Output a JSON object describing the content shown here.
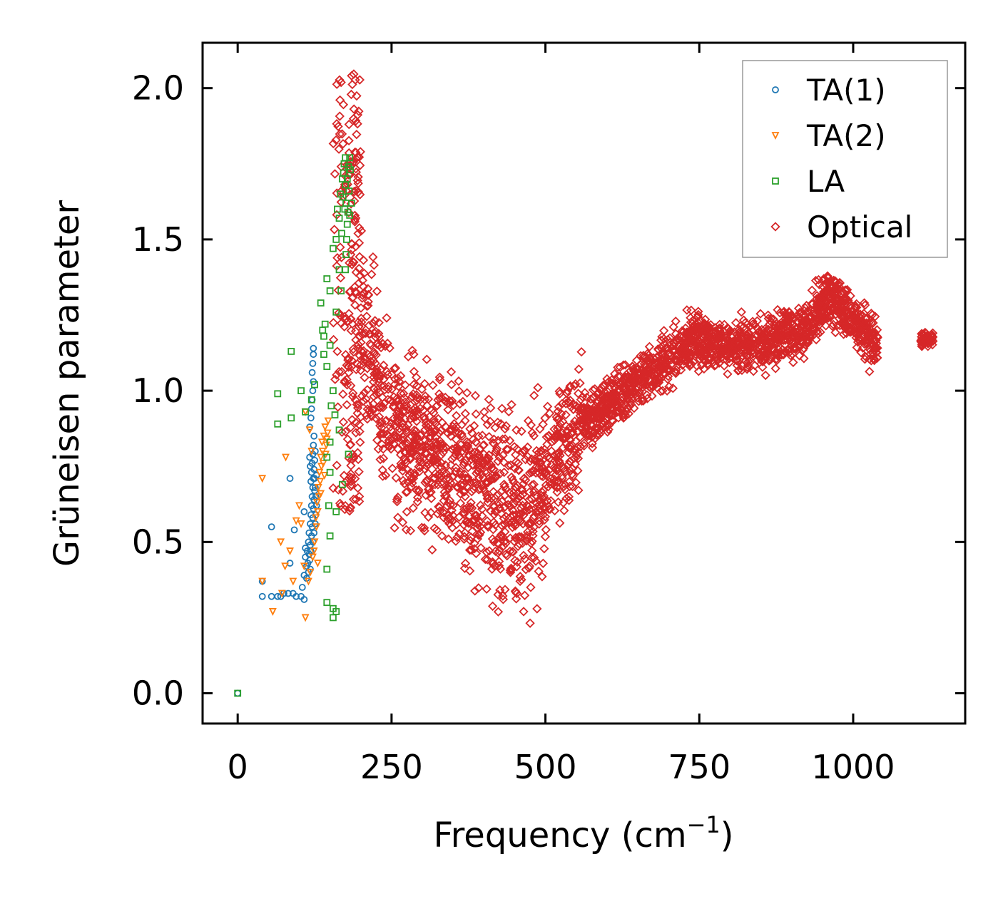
{
  "chart_data": {
    "type": "scatter",
    "title": "",
    "xlabel": "Frequency (cm",
    "xlabel_sup": "−1",
    "xlabel_close": ")",
    "ylabel": "Grüneisen parameter",
    "xlim": [
      -57,
      1182
    ],
    "ylim": [
      -0.1,
      2.15
    ],
    "xticks": [
      0,
      250,
      500,
      750,
      1000
    ],
    "xtick_labels": [
      "0",
      "250",
      "500",
      "750",
      "1000"
    ],
    "yticks": [
      0.0,
      0.5,
      1.0,
      1.5,
      2.0
    ],
    "ytick_labels": [
      "0.0",
      "0.5",
      "1.0",
      "1.5",
      "2.0"
    ],
    "grid": false,
    "legend_position": "top-right",
    "series": [
      {
        "name": "TA(1)",
        "marker": "circle",
        "color": "#1f77b4",
        "points": [
          [
            0,
            0
          ],
          [
            40,
            0.37
          ],
          [
            40,
            0.32
          ],
          [
            55,
            0.32
          ],
          [
            65,
            0.32
          ],
          [
            70,
            0.32
          ],
          [
            75,
            0.33
          ],
          [
            82,
            0.33
          ],
          [
            90,
            0.33
          ],
          [
            95,
            0.32
          ],
          [
            103,
            0.32
          ],
          [
            108,
            0.31
          ],
          [
            55,
            0.55
          ],
          [
            85,
            0.43
          ],
          [
            92,
            0.54
          ],
          [
            85,
            0.71
          ],
          [
            105,
            0.35
          ],
          [
            108,
            0.39
          ],
          [
            112,
            0.38
          ],
          [
            115,
            0.4
          ],
          [
            118,
            0.41
          ],
          [
            108,
            0.6
          ],
          [
            110,
            0.45
          ],
          [
            113,
            0.47
          ],
          [
            115,
            0.5
          ],
          [
            116,
            0.53
          ],
          [
            118,
            0.56
          ],
          [
            119,
            0.59
          ],
          [
            120,
            0.62
          ],
          [
            121,
            0.65
          ],
          [
            122,
            0.68
          ],
          [
            123,
            0.71
          ],
          [
            124,
            0.74
          ],
          [
            125,
            0.77
          ],
          [
            126,
            0.8
          ],
          [
            116,
            0.46
          ],
          [
            118,
            0.49
          ],
          [
            120,
            0.52
          ],
          [
            121,
            0.55
          ],
          [
            122,
            0.58
          ],
          [
            123,
            0.61
          ],
          [
            124,
            0.64
          ],
          [
            125,
            0.67
          ],
          [
            119,
            0.7
          ],
          [
            120,
            0.73
          ],
          [
            121,
            0.76
          ],
          [
            122,
            0.79
          ],
          [
            123,
            0.82
          ],
          [
            124,
            0.85
          ],
          [
            117,
            0.88
          ],
          [
            119,
            0.91
          ],
          [
            120,
            0.94
          ],
          [
            121,
            0.97
          ],
          [
            122,
            1.0
          ],
          [
            123,
            1.03
          ],
          [
            121,
            1.06
          ],
          [
            122,
            1.09
          ],
          [
            123,
            1.12
          ],
          [
            123,
            1.14
          ],
          [
            114,
            0.43
          ],
          [
            117,
            0.44
          ],
          [
            119,
            0.47
          ],
          [
            122,
            0.5
          ],
          [
            124,
            0.53
          ],
          [
            126,
            0.56
          ],
          [
            127,
            0.59
          ],
          [
            128,
            0.62
          ],
          [
            127,
            0.65
          ],
          [
            126,
            0.68
          ],
          [
            125,
            0.71
          ],
          [
            118,
            0.75
          ],
          [
            117,
            0.78
          ],
          [
            112,
            0.42
          ],
          [
            110,
            0.48
          ],
          [
            128,
            0.72
          ]
        ]
      },
      {
        "name": "TA(2)",
        "marker": "triangle-down",
        "color": "#ff7f0e",
        "points": [
          [
            40,
            0.71
          ],
          [
            40,
            0.37
          ],
          [
            57,
            0.27
          ],
          [
            72,
            0.33
          ],
          [
            70,
            0.5
          ],
          [
            77,
            0.42
          ],
          [
            85,
            0.47
          ],
          [
            90,
            0.37
          ],
          [
            95,
            0.57
          ],
          [
            100,
            0.62
          ],
          [
            103,
            0.56
          ],
          [
            108,
            0.42
          ],
          [
            110,
            0.25
          ],
          [
            110,
            0.93
          ],
          [
            115,
            0.37
          ],
          [
            118,
            0.4
          ],
          [
            122,
            0.45
          ],
          [
            125,
            0.5
          ],
          [
            128,
            0.55
          ],
          [
            130,
            0.6
          ],
          [
            132,
            0.65
          ],
          [
            134,
            0.7
          ],
          [
            136,
            0.75
          ],
          [
            138,
            0.8
          ],
          [
            140,
            0.85
          ],
          [
            142,
            0.88
          ],
          [
            127,
            0.58
          ],
          [
            129,
            0.63
          ],
          [
            131,
            0.68
          ],
          [
            133,
            0.73
          ],
          [
            135,
            0.78
          ],
          [
            137,
            0.83
          ],
          [
            139,
            0.76
          ],
          [
            141,
            0.72
          ],
          [
            143,
            0.79
          ],
          [
            144,
            0.82
          ],
          [
            145,
            0.84
          ],
          [
            146,
            0.86
          ],
          [
            147,
            0.9
          ],
          [
            117,
            0.87
          ],
          [
            120,
            0.8
          ],
          [
            78,
            0.78
          ],
          [
            130,
            0.43
          ],
          [
            135,
            0.66
          ],
          [
            124,
            0.47
          ]
        ]
      },
      {
        "name": "LA",
        "marker": "square",
        "color": "#2ca02c",
        "points": [
          [
            0,
            0
          ],
          [
            65,
            0.89
          ],
          [
            65,
            0.99
          ],
          [
            87,
            0.91
          ],
          [
            87,
            1.13
          ],
          [
            103,
            1.0
          ],
          [
            110,
            0.93
          ],
          [
            120,
            0.97
          ],
          [
            125,
            1.02
          ],
          [
            135,
            1.29
          ],
          [
            140,
            1.18
          ],
          [
            142,
            1.22
          ],
          [
            145,
            1.37
          ],
          [
            150,
            1.33
          ],
          [
            155,
            1.47
          ],
          [
            160,
            1.5
          ],
          [
            162,
            1.6
          ],
          [
            165,
            1.57
          ],
          [
            167,
            1.65
          ],
          [
            170,
            1.7
          ],
          [
            172,
            1.72
          ],
          [
            173,
            1.75
          ],
          [
            175,
            1.68
          ],
          [
            176,
            1.62
          ],
          [
            178,
            1.55
          ],
          [
            180,
            1.74
          ],
          [
            182,
            1.58
          ],
          [
            177,
            1.5
          ],
          [
            174,
            1.6
          ],
          [
            171,
            1.64
          ],
          [
            169,
            1.52
          ],
          [
            178,
            1.7
          ],
          [
            181,
            1.66
          ],
          [
            183,
            1.73
          ],
          [
            179,
            1.59
          ],
          [
            176,
            1.45
          ],
          [
            168,
            1.33
          ],
          [
            165,
            1.4
          ],
          [
            160,
            1.26
          ],
          [
            150,
            1.15
          ],
          [
            145,
            1.08
          ],
          [
            140,
            1.12
          ],
          [
            138,
            1.2
          ],
          [
            152,
            0.95
          ],
          [
            155,
            1.0
          ],
          [
            150,
            0.83
          ],
          [
            145,
            0.78
          ],
          [
            150,
            0.73
          ],
          [
            148,
            0.62
          ],
          [
            150,
            0.52
          ],
          [
            145,
            0.41
          ],
          [
            145,
            0.3
          ],
          [
            155,
            0.28
          ],
          [
            155,
            0.25
          ],
          [
            160,
            0.27
          ],
          [
            170,
            0.69
          ],
          [
            180,
            0.79
          ],
          [
            165,
            0.87
          ],
          [
            158,
            0.92
          ],
          [
            160,
            0.6
          ],
          [
            175,
            1.4
          ],
          [
            185,
            1.62
          ],
          [
            175,
            1.77
          ],
          [
            182,
            1.77
          ]
        ]
      },
      {
        "name": "Optical",
        "marker": "diamond",
        "color": "#d62728",
        "points": [],
        "cloud_ridge": [
          [
            155,
            0.72
          ],
          [
            162,
            1.6
          ],
          [
            170,
            2.0
          ],
          [
            180,
            1.85
          ],
          [
            190,
            1.45
          ],
          [
            200,
            1.2
          ],
          [
            230,
            1.0
          ],
          [
            270,
            0.85
          ],
          [
            330,
            0.78
          ],
          [
            380,
            0.68
          ],
          [
            420,
            0.62
          ],
          [
            470,
            0.6
          ],
          [
            510,
            0.75
          ],
          [
            560,
            0.9
          ],
          [
            620,
            0.98
          ],
          [
            680,
            1.07
          ],
          [
            740,
            1.18
          ],
          [
            800,
            1.14
          ],
          [
            860,
            1.16
          ],
          [
            920,
            1.2
          ],
          [
            960,
            1.32
          ],
          [
            990,
            1.27
          ],
          [
            1030,
            1.15
          ],
          [
            1120,
            1.17
          ]
        ]
      }
    ]
  }
}
